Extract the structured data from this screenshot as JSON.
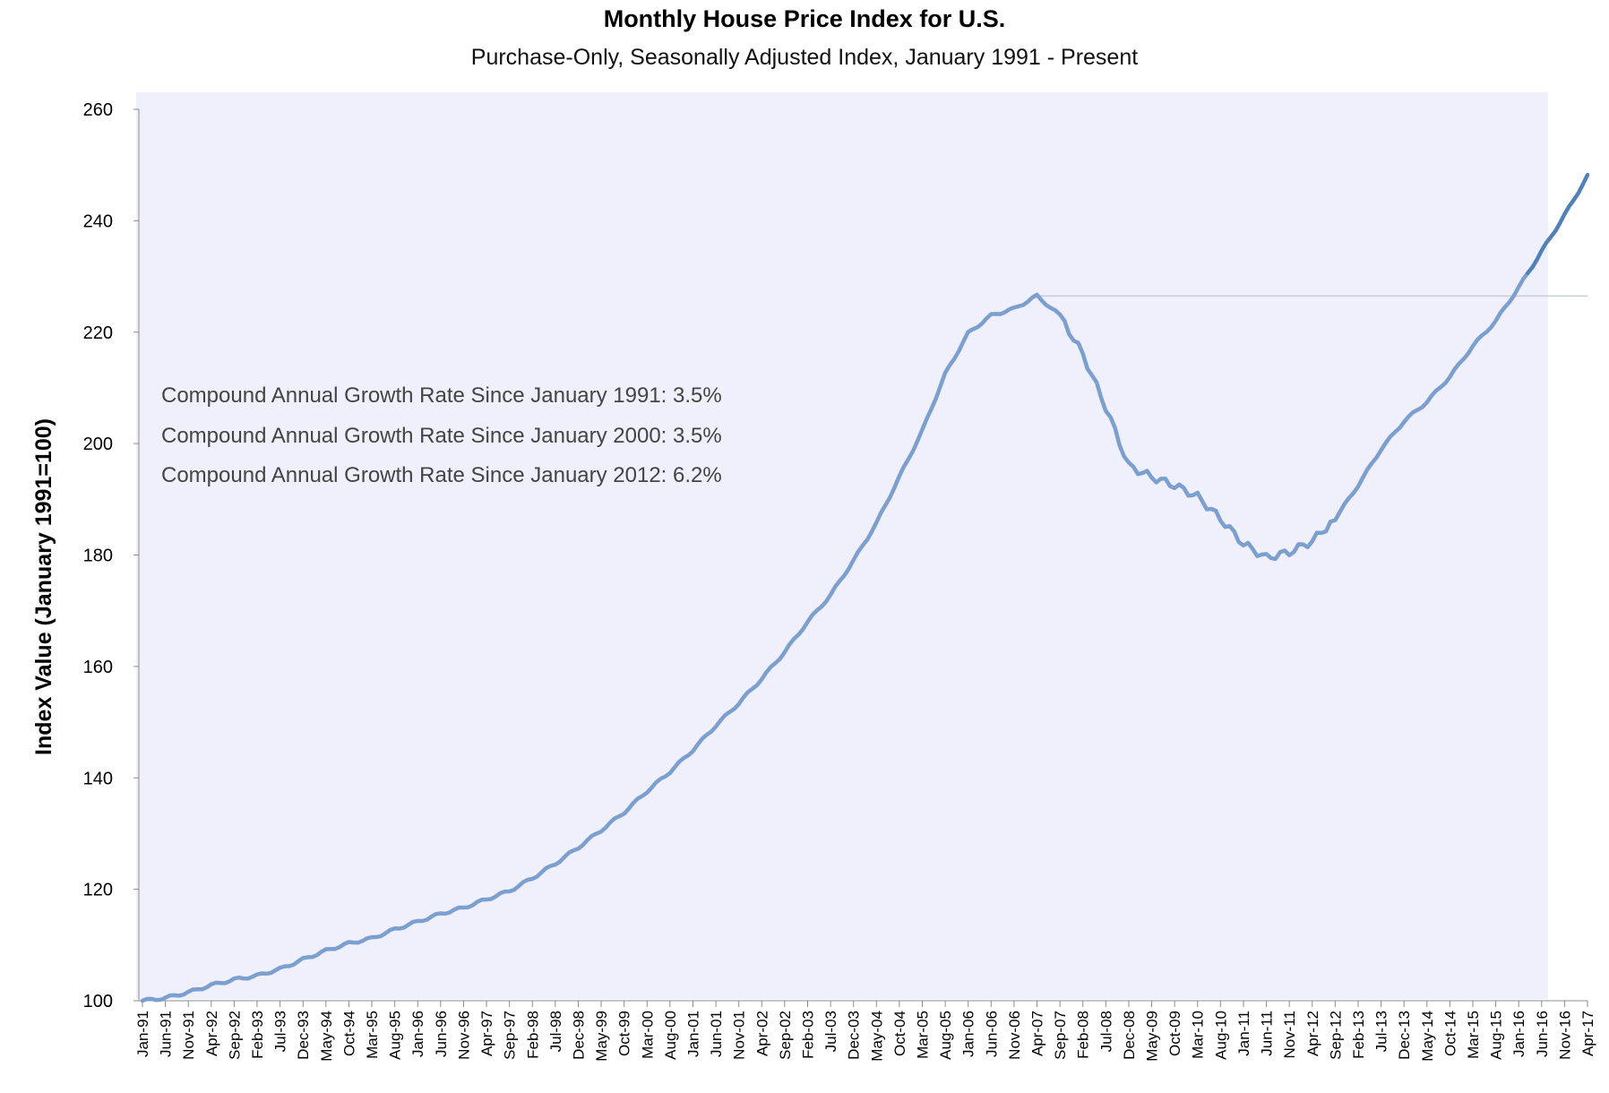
{
  "chart_data": {
    "type": "line",
    "title": "Monthly House Price Index for U.S.",
    "subtitle": "Purchase-Only, Seasonally Adjusted Index, January 1991 - Present",
    "ylabel": "Index Value (January 1991=100)",
    "xlabel": "",
    "ylim": [
      100,
      260
    ],
    "yticks": [
      100,
      120,
      140,
      160,
      180,
      200,
      220,
      240,
      260
    ],
    "grid": false,
    "colors": {
      "line": "#7b9fcf",
      "line_recent": "#4f81bd",
      "plot_bg": "#eff0fb",
      "peak_line": "#c7ccd8"
    },
    "x_start": "Jan-91",
    "x_end": "Apr-17",
    "num_months": 316,
    "xtick_labels": [
      "Jan-91",
      "Jun-91",
      "Nov-91",
      "Apr-92",
      "Sep-92",
      "Feb-93",
      "Jul-93",
      "Dec-93",
      "May-94",
      "Oct-94",
      "Mar-95",
      "Aug-95",
      "Jan-96",
      "Jun-96",
      "Nov-96",
      "Apr-97",
      "Sep-97",
      "Feb-98",
      "Jul-98",
      "Dec-98",
      "May-99",
      "Oct-99",
      "Mar-00",
      "Aug-00",
      "Jan-01",
      "Jun-01",
      "Nov-01",
      "Apr-02",
      "Sep-02",
      "Feb-03",
      "Jul-03",
      "Dec-03",
      "May-04",
      "Oct-04",
      "Mar-05",
      "Aug-05",
      "Jan-06",
      "Jun-06",
      "Nov-06",
      "Apr-07",
      "Sep-07",
      "Feb-08",
      "Jul-08",
      "Dec-08",
      "May-09",
      "Oct-09",
      "Mar-10",
      "Aug-10",
      "Jan-11",
      "Jun-11",
      "Nov-11",
      "Apr-12",
      "Sep-12",
      "Feb-13",
      "Jul-13",
      "Dec-13",
      "May-14",
      "Oct-14",
      "Mar-15",
      "Aug-15",
      "Jan-16",
      "Jun-16",
      "Nov-16",
      "Apr-17"
    ],
    "series": [
      {
        "name": "Purchase-Only Seasonally Adjusted Index",
        "values_by_label": {
          "Jan-91": 100.0,
          "Jun-91": 100.5,
          "Nov-91": 101.5,
          "Apr-92": 102.8,
          "Sep-92": 103.8,
          "Feb-93": 104.5,
          "Jul-93": 105.7,
          "Dec-93": 107.4,
          "May-94": 109.0,
          "Oct-94": 110.3,
          "Mar-95": 111.2,
          "Aug-95": 112.8,
          "Jan-96": 114.2,
          "Jun-96": 115.6,
          "Nov-96": 116.7,
          "Apr-97": 118.2,
          "Sep-97": 119.7,
          "Feb-98": 122.0,
          "Jul-98": 124.6,
          "Dec-98": 127.5,
          "May-99": 130.6,
          "Oct-99": 133.8,
          "Mar-00": 137.6,
          "Aug-00": 141.1,
          "Jan-01": 145.0,
          "Jun-01": 149.4,
          "Nov-01": 153.4,
          "Apr-02": 157.8,
          "Sep-02": 162.6,
          "Feb-03": 168.0,
          "Jul-03": 172.8,
          "Dec-03": 179.0,
          "May-04": 185.7,
          "Oct-04": 194.0,
          "Mar-05": 202.3,
          "Aug-05": 212.5,
          "Jan-06": 219.8,
          "Jun-06": 223.0,
          "Nov-06": 224.2,
          "Apr-07": 226.5,
          "Sep-07": 223.0,
          "Feb-08": 216.0,
          "Jul-08": 206.5,
          "Dec-08": 196.0,
          "May-09": 194.0,
          "Oct-09": 192.5,
          "Mar-10": 190.5,
          "Aug-10": 186.5,
          "Jan-11": 182.0,
          "Jun-11": 179.5,
          "Nov-11": 180.5,
          "Apr-12": 182.5,
          "Sep-12": 186.5,
          "Feb-13": 192.5,
          "Jul-13": 199.0,
          "Dec-13": 204.0,
          "May-14": 207.5,
          "Oct-14": 212.0,
          "Mar-15": 217.5,
          "Aug-15": 222.0,
          "Jan-16": 228.0,
          "Jun-16": 234.5,
          "Nov-16": 241.0,
          "Apr-17": 248.0
        },
        "peak_value": 226.5,
        "peak_label": "Apr-07"
      }
    ],
    "annotations": [
      "Compound Annual Growth Rate Since January 1991:  3.5%",
      "Compound Annual Growth Rate Since January 2000:  3.5%",
      "Compound Annual Growth Rate Since January 2012:  6.2%"
    ]
  }
}
